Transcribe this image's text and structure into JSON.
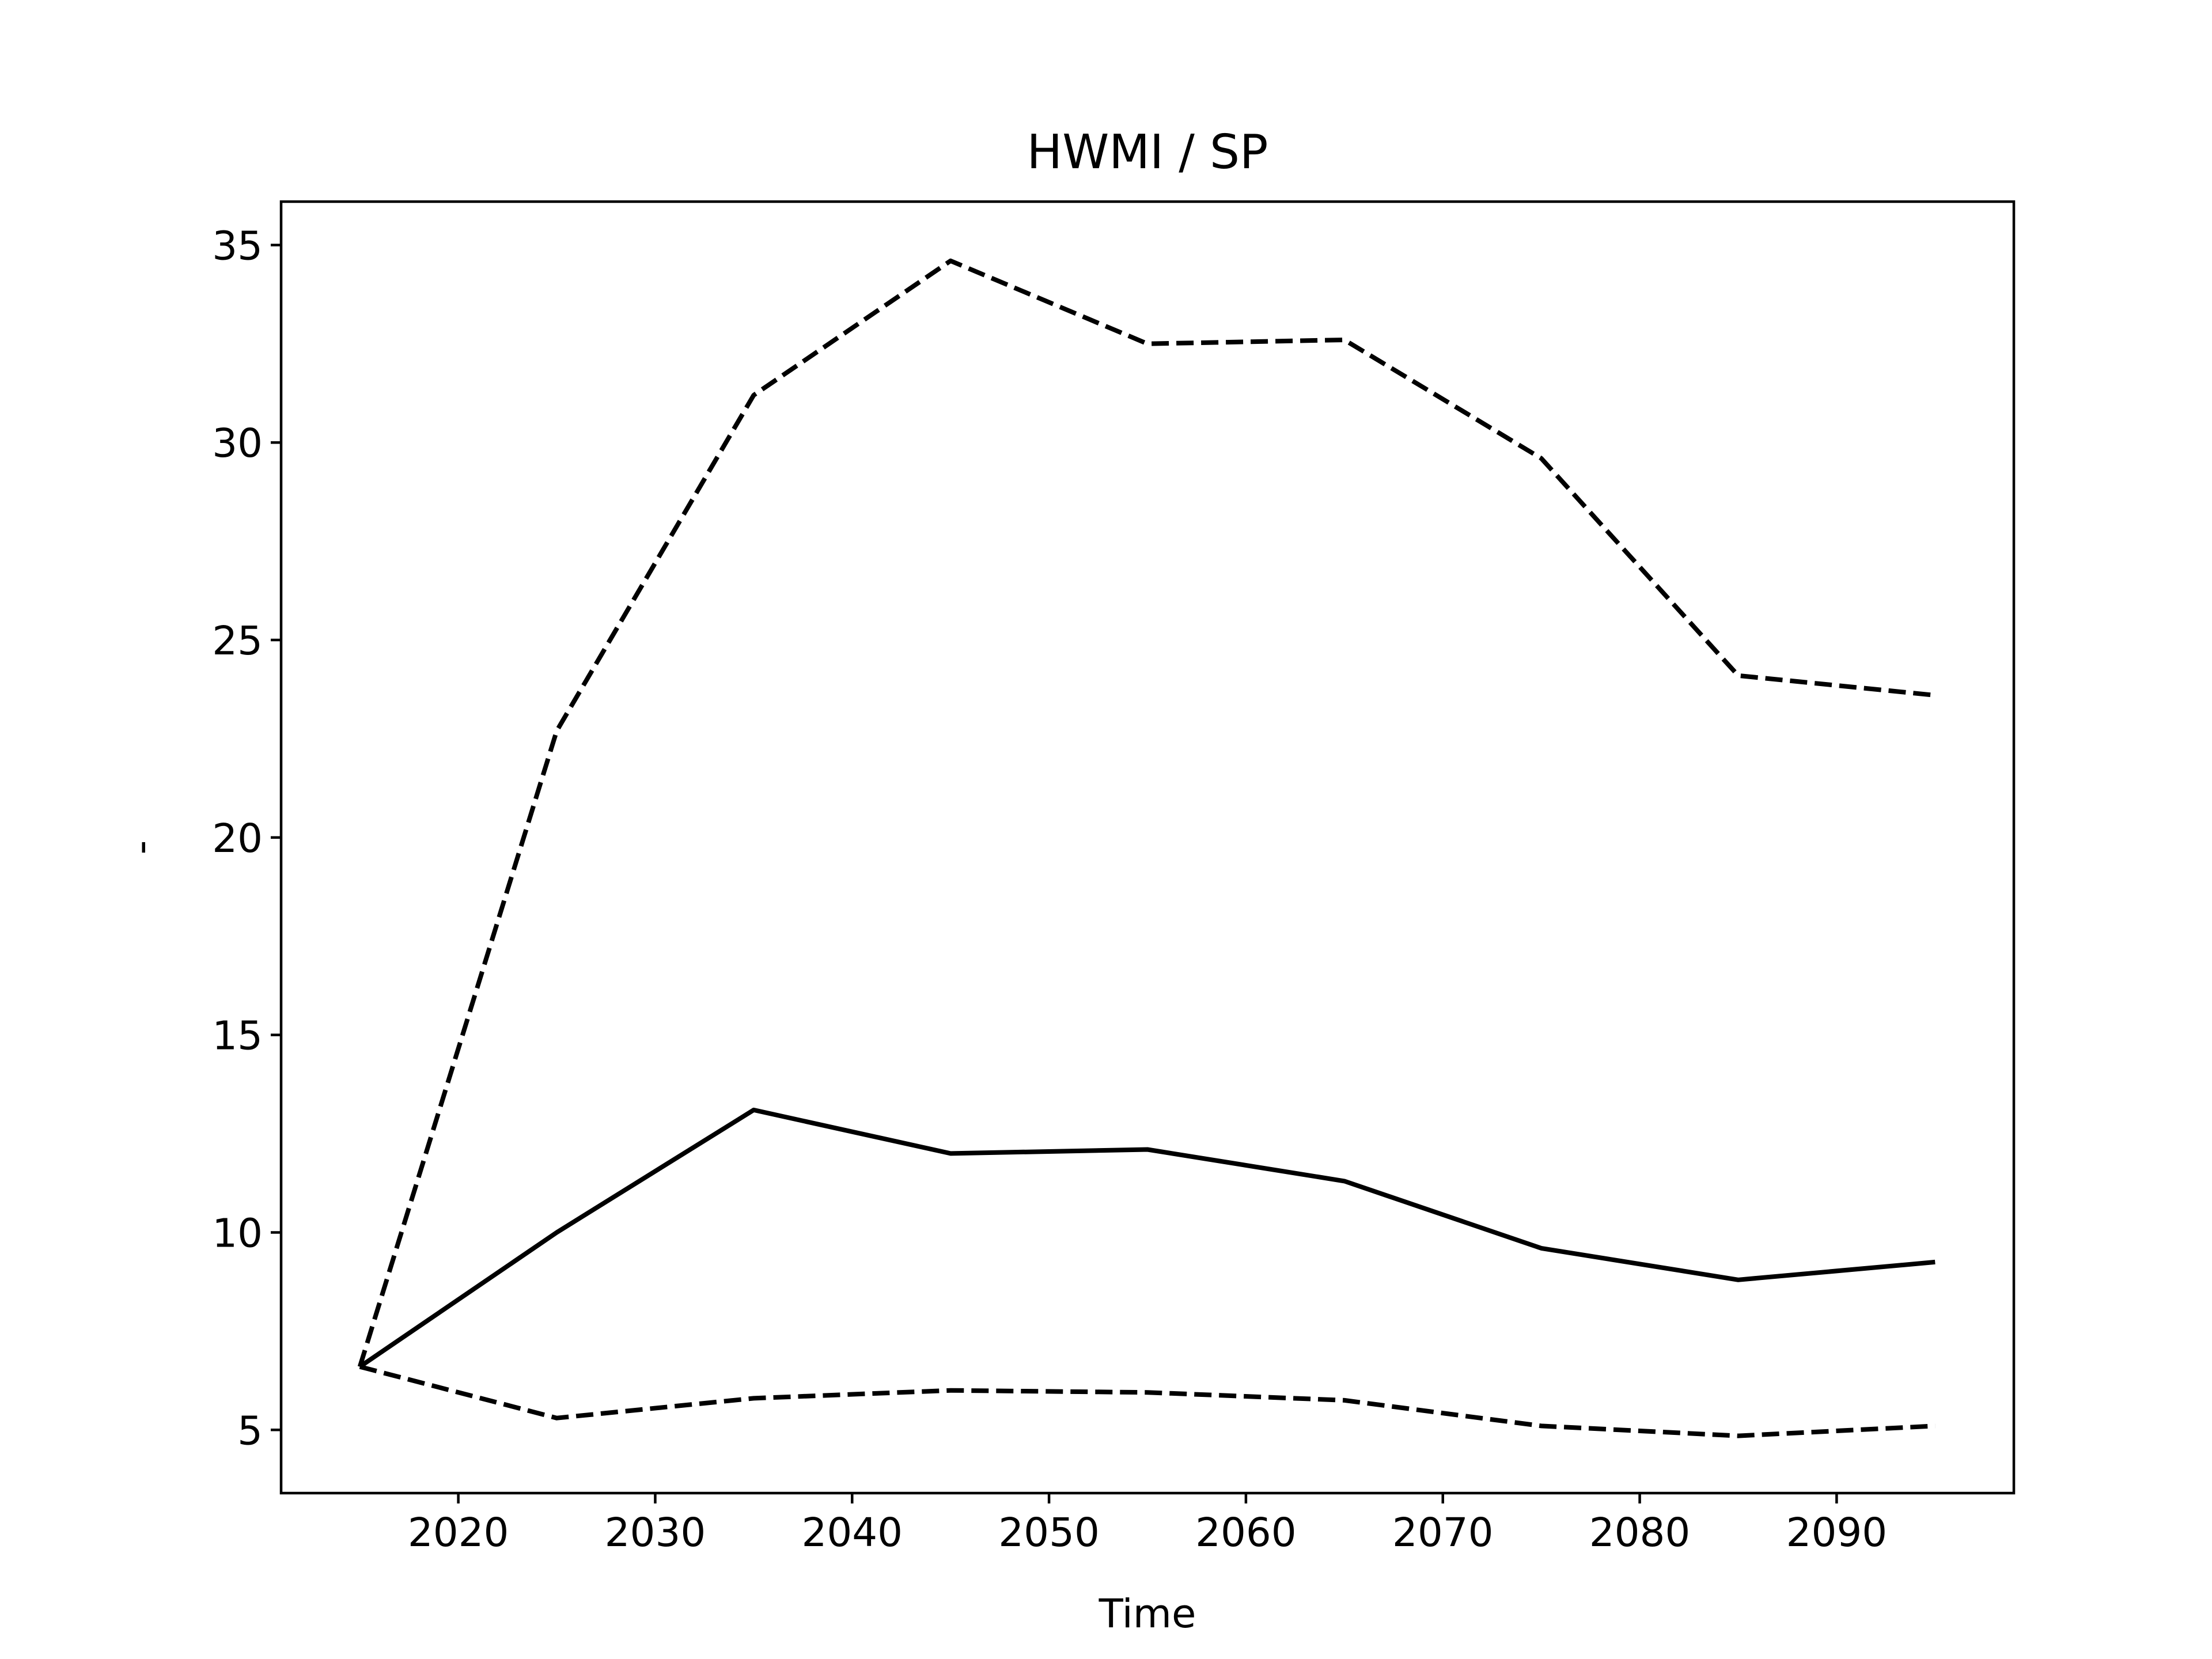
{
  "chart_data": {
    "type": "line",
    "title": "HWMI / SP",
    "xlabel": "Time",
    "ylabel": "-",
    "xlim": [
      2011,
      2099
    ],
    "ylim": [
      3.4,
      36.1
    ],
    "xticks": [
      2020,
      2030,
      2040,
      2050,
      2060,
      2070,
      2080,
      2090
    ],
    "yticks": [
      5,
      10,
      15,
      20,
      25,
      30,
      35
    ],
    "grid": false,
    "x": [
      2015,
      2025,
      2035,
      2045,
      2055,
      2065,
      2075,
      2085,
      2095
    ],
    "series": [
      {
        "values": [
          6.6,
          5.3,
          5.8,
          6.0,
          5.95,
          5.75,
          5.1,
          4.85,
          5.1
        ],
        "style": "dashed",
        "color": "#000000"
      },
      {
        "values": [
          6.6,
          10.0,
          13.1,
          12.0,
          12.1,
          11.3,
          9.6,
          8.8,
          9.25
        ],
        "style": "solid",
        "color": "#000000"
      },
      {
        "values": [
          6.6,
          22.7,
          31.2,
          34.6,
          32.5,
          32.6,
          29.6,
          24.1,
          23.6
        ],
        "style": "dashed",
        "color": "#000000"
      }
    ]
  }
}
